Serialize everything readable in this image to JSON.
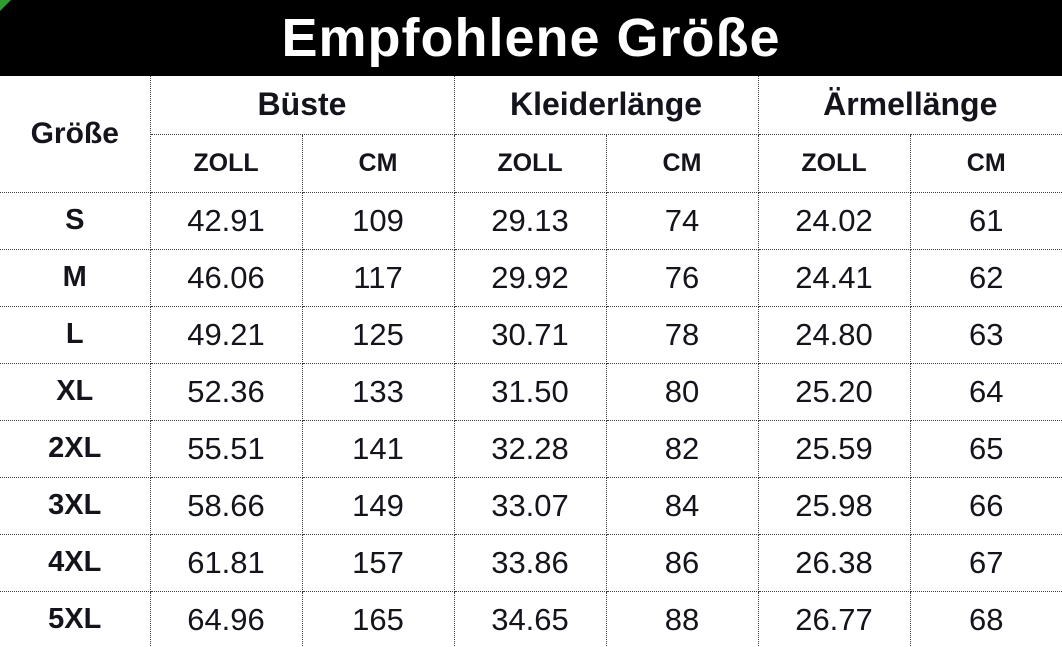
{
  "title": "Empfohlene Größe",
  "corner_marker": {
    "color": "#2f9e2f"
  },
  "colors": {
    "title_bar_bg": "#000000",
    "title_text": "#ffffff",
    "body_text": "#14141c",
    "border": "#404040"
  },
  "table": {
    "size_header": "Größe",
    "groups": [
      "Büste",
      "Kleiderlänge",
      "Ärmellänge"
    ],
    "units": [
      "ZOLL",
      "CM",
      "ZOLL",
      "CM",
      "ZOLL",
      "CM"
    ],
    "rows": [
      {
        "size": "S",
        "values": [
          "42.91",
          "109",
          "29.13",
          "74",
          "24.02",
          "61"
        ]
      },
      {
        "size": "M",
        "values": [
          "46.06",
          "117",
          "29.92",
          "76",
          "24.41",
          "62"
        ]
      },
      {
        "size": "L",
        "values": [
          "49.21",
          "125",
          "30.71",
          "78",
          "24.80",
          "63"
        ]
      },
      {
        "size": "XL",
        "values": [
          "52.36",
          "133",
          "31.50",
          "80",
          "25.20",
          "64"
        ]
      },
      {
        "size": "2XL",
        "values": [
          "55.51",
          "141",
          "32.28",
          "82",
          "25.59",
          "65"
        ]
      },
      {
        "size": "3XL",
        "values": [
          "58.66",
          "149",
          "33.07",
          "84",
          "25.98",
          "66"
        ]
      },
      {
        "size": "4XL",
        "values": [
          "61.81",
          "157",
          "33.86",
          "86",
          "26.38",
          "67"
        ]
      },
      {
        "size": "5XL",
        "values": [
          "64.96",
          "165",
          "34.65",
          "88",
          "26.77",
          "68"
        ]
      }
    ]
  }
}
